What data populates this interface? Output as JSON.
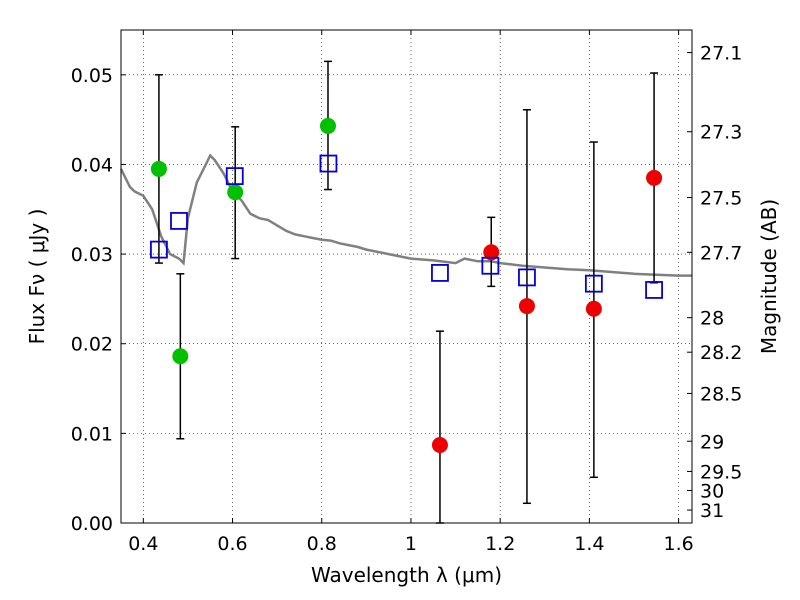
{
  "chart_data": {
    "type": "scatter",
    "title": "",
    "xlabel": "Wavelength  λ (μm)",
    "ylabel": "Flux  Fν  ( μJy )",
    "y2label": "Magnitude (AB)",
    "xlim": [
      0.35,
      1.63
    ],
    "ylim": [
      0.0,
      0.055
    ],
    "grid": true,
    "x_ticks": [
      0.4,
      0.6,
      0.8,
      1.0,
      1.2,
      1.4,
      1.6
    ],
    "x_tick_labels": [
      "0.4",
      "0.6",
      "0.8",
      "1",
      "1.2",
      "1.4",
      "1.6"
    ],
    "y_ticks": [
      0.0,
      0.01,
      0.02,
      0.03,
      0.04,
      0.05
    ],
    "y_tick_labels": [
      "0.00",
      "0.01",
      "0.02",
      "0.03",
      "0.04",
      "0.05"
    ],
    "y2_ticks": [
      "27.1",
      "27.3",
      "27.5",
      "27.7",
      "28",
      "28.2",
      "28.5",
      "29",
      "29.5",
      "30",
      "31"
    ],
    "colors": {
      "optical_points": "#00c000",
      "nir_points": "#ee0000",
      "model_squares": "#0000dd",
      "sed_line": "#808080",
      "error_bars": "#000000"
    },
    "series": [
      {
        "marker": "circle",
        "color": "#00c000",
        "points": [
          {
            "x": 0.435,
            "y": 0.0395,
            "ylo": 0.029,
            "yhi": 0.05
          },
          {
            "x": 0.483,
            "y": 0.0186,
            "ylo": 0.0094,
            "yhi": 0.0278
          },
          {
            "x": 0.606,
            "y": 0.0369,
            "ylo": 0.0295,
            "yhi": 0.0442
          },
          {
            "x": 0.814,
            "y": 0.0443,
            "ylo": 0.0372,
            "yhi": 0.0515
          }
        ]
      },
      {
        "marker": "circle",
        "color": "#ee0000",
        "points": [
          {
            "x": 1.065,
            "y": 0.0087,
            "ylo": 0.0,
            "yhi": 0.0214
          },
          {
            "x": 1.18,
            "y": 0.0302,
            "ylo": 0.0264,
            "yhi": 0.0341
          },
          {
            "x": 1.26,
            "y": 0.0242,
            "ylo": 0.0022,
            "yhi": 0.0461
          },
          {
            "x": 1.41,
            "y": 0.0239,
            "ylo": 0.0051,
            "yhi": 0.0425
          },
          {
            "x": 1.545,
            "y": 0.0385,
            "ylo": 0.0268,
            "yhi": 0.0502
          }
        ]
      },
      {
        "marker": "open-square",
        "color": "#0000dd",
        "points": [
          {
            "x": 0.435,
            "y": 0.0305
          },
          {
            "x": 0.48,
            "y": 0.0337
          },
          {
            "x": 0.605,
            "y": 0.0387
          },
          {
            "x": 0.815,
            "y": 0.0401
          },
          {
            "x": 1.065,
            "y": 0.0279
          },
          {
            "x": 1.178,
            "y": 0.0287
          },
          {
            "x": 1.26,
            "y": 0.0274
          },
          {
            "x": 1.41,
            "y": 0.0267
          },
          {
            "x": 1.545,
            "y": 0.026
          }
        ]
      },
      {
        "marker": "line",
        "color": "#808080",
        "x": [
          0.35,
          0.37,
          0.38,
          0.4,
          0.42,
          0.44,
          0.46,
          0.48,
          0.49,
          0.5,
          0.52,
          0.54,
          0.55,
          0.56,
          0.58,
          0.6,
          0.62,
          0.64,
          0.66,
          0.68,
          0.7,
          0.72,
          0.74,
          0.76,
          0.78,
          0.8,
          0.82,
          0.84,
          0.86,
          0.88,
          0.9,
          0.95,
          1.0,
          1.05,
          1.1,
          1.12,
          1.15,
          1.18,
          1.2,
          1.25,
          1.3,
          1.35,
          1.4,
          1.45,
          1.5,
          1.55,
          1.6,
          1.63
        ],
        "y": [
          0.0395,
          0.0375,
          0.037,
          0.0365,
          0.035,
          0.032,
          0.03,
          0.0295,
          0.029,
          0.034,
          0.038,
          0.04,
          0.041,
          0.0405,
          0.039,
          0.037,
          0.036,
          0.0345,
          0.034,
          0.0338,
          0.0332,
          0.0326,
          0.0322,
          0.032,
          0.0318,
          0.0316,
          0.0315,
          0.0312,
          0.031,
          0.0308,
          0.0305,
          0.03,
          0.0295,
          0.0293,
          0.029,
          0.0295,
          0.0292,
          0.0292,
          0.029,
          0.0287,
          0.0285,
          0.0283,
          0.0282,
          0.028,
          0.0278,
          0.0277,
          0.0276,
          0.0276
        ]
      }
    ]
  }
}
